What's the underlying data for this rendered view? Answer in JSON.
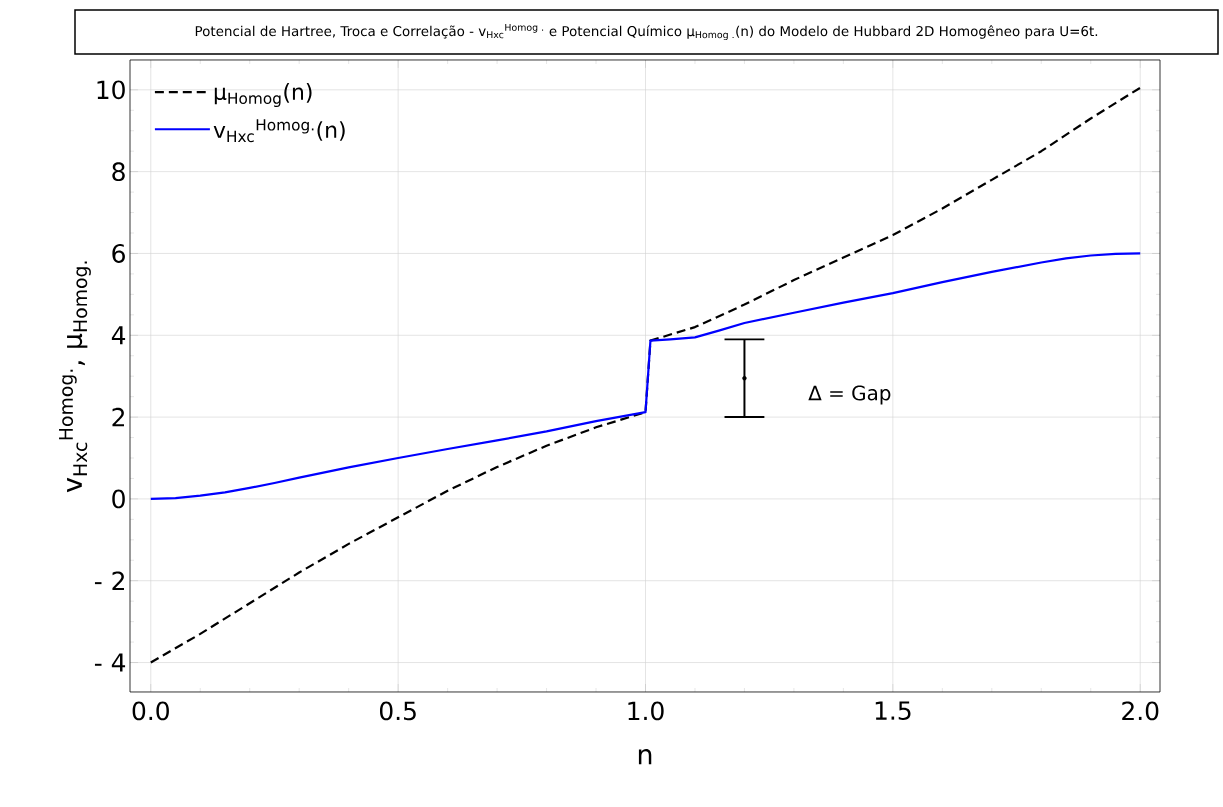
{
  "chart_data": {
    "type": "line",
    "title": "Potencial de Hartree, Troca e Correlação - v$_{Hxc}$$^{Homog .}$ e Potencial Químico μ$_{Homog .}$(n) do Modelo de Hubbard 2D Homogêneo para U=6t.",
    "xlabel": "n",
    "ylabel": "v$_{Hxc}$$^{Homog.}$, μ$_{Homog.}$",
    "xlim": [
      -0.042,
      2.04
    ],
    "ylim": [
      -4.72,
      10.73
    ],
    "xticks": [
      {
        "value": 0,
        "label": "0.0"
      },
      {
        "value": 0.5,
        "label": "0.5"
      },
      {
        "value": 1,
        "label": "1.0"
      },
      {
        "value": 1.5,
        "label": "1.5"
      },
      {
        "value": 2,
        "label": "2.0"
      }
    ],
    "yticks": [
      {
        "value": -4,
        "label": "- 4"
      },
      {
        "value": -2,
        "label": "- 2"
      },
      0,
      2,
      4,
      6,
      8,
      10
    ],
    "grid": true,
    "legend": "top left",
    "marker": "none",
    "series": [
      {
        "name": "μ$_{Homog}$(n)",
        "color": "#000000",
        "line_style": "dashed",
        "x": [
          0,
          0.1,
          0.2,
          0.3,
          0.4,
          0.5,
          0.6,
          0.7,
          0.8,
          0.9,
          1.0,
          1.01,
          1.1,
          1.2,
          1.3,
          1.4,
          1.5,
          1.6,
          1.7,
          1.8,
          1.9,
          2.0
        ],
        "values": [
          -4,
          -3.3,
          -2.55,
          -1.8,
          -1.1,
          -0.45,
          0.2,
          0.78,
          1.3,
          1.75,
          2.12,
          3.87,
          4.2,
          4.75,
          5.35,
          5.9,
          6.45,
          7.1,
          7.8,
          8.5,
          9.3,
          10.05
        ]
      },
      {
        "name": "v$_{Hxc}$$^{Homog.}$(n)",
        "color": "#0000ff",
        "line_style": "solid",
        "x": [
          0,
          0.05,
          0.1,
          0.15,
          0.2,
          0.25,
          0.3,
          0.4,
          0.5,
          0.6,
          0.7,
          0.8,
          0.9,
          1.0,
          1.01,
          1.05,
          1.1,
          1.15,
          1.2,
          1.3,
          1.4,
          1.5,
          1.6,
          1.7,
          1.8,
          1.85,
          1.9,
          1.95,
          2.0
        ],
        "values": [
          0,
          0.02,
          0.08,
          0.16,
          0.27,
          0.39,
          0.52,
          0.77,
          1.0,
          1.22,
          1.43,
          1.65,
          1.9,
          2.12,
          3.87,
          3.9,
          3.95,
          4.12,
          4.3,
          4.55,
          4.8,
          5.03,
          5.3,
          5.55,
          5.78,
          5.88,
          5.95,
          5.99,
          6.0
        ]
      },
      {
        "type": "scatter",
        "color": "#000000",
        "x": [
          1.2
        ],
        "values": [
          2.95
        ],
        "errors": [
          0.95
        ]
      }
    ],
    "annotations": [
      "Δ  = Gap"
    ]
  }
}
